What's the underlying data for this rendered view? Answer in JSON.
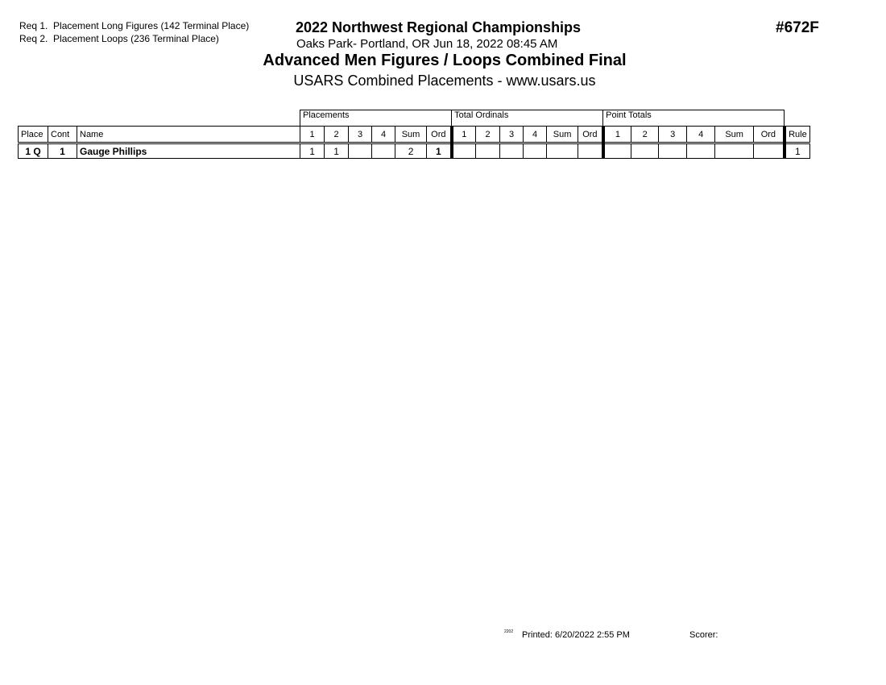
{
  "requirements": [
    {
      "label": "Req  1.",
      "text": "Placement Long Figures (142 Terminal Place)"
    },
    {
      "label": "Req  2.",
      "text": "Placement Loops (236 Terminal Place)"
    }
  ],
  "header": {
    "competition": "2022 Northwest Regional Championships",
    "venue_date": "Oaks Park- Portland, OR  Jun 18, 2022  08:45 AM",
    "event_title": "Advanced Men Figures / Loops Combined Final",
    "subtitle": "USARS Combined Placements - www.usars.us",
    "event_number": "#672F"
  },
  "table": {
    "groups": [
      "Placements",
      "Total Ordinals",
      "Point Totals"
    ],
    "columns": [
      "Place",
      "Cont",
      "Name",
      "1",
      "2",
      "3",
      "4",
      "Sum",
      "Ord",
      "1",
      "2",
      "3",
      "4",
      "Sum",
      "Ord",
      "1",
      "2",
      "3",
      "4",
      "Sum",
      "Ord",
      "Rule"
    ],
    "rows": [
      {
        "cells": [
          "1 Q",
          "1",
          "Gauge Phillips",
          "1",
          "1",
          "",
          "",
          "2",
          "1",
          "",
          "",
          "",
          "",
          "",
          "",
          "",
          "",
          "",
          "",
          "",
          "",
          "1"
        ]
      }
    ]
  },
  "footer": {
    "code": "2202",
    "printed": "Printed:  6/20/2022  2:55 PM",
    "scorer": "Scorer:"
  }
}
